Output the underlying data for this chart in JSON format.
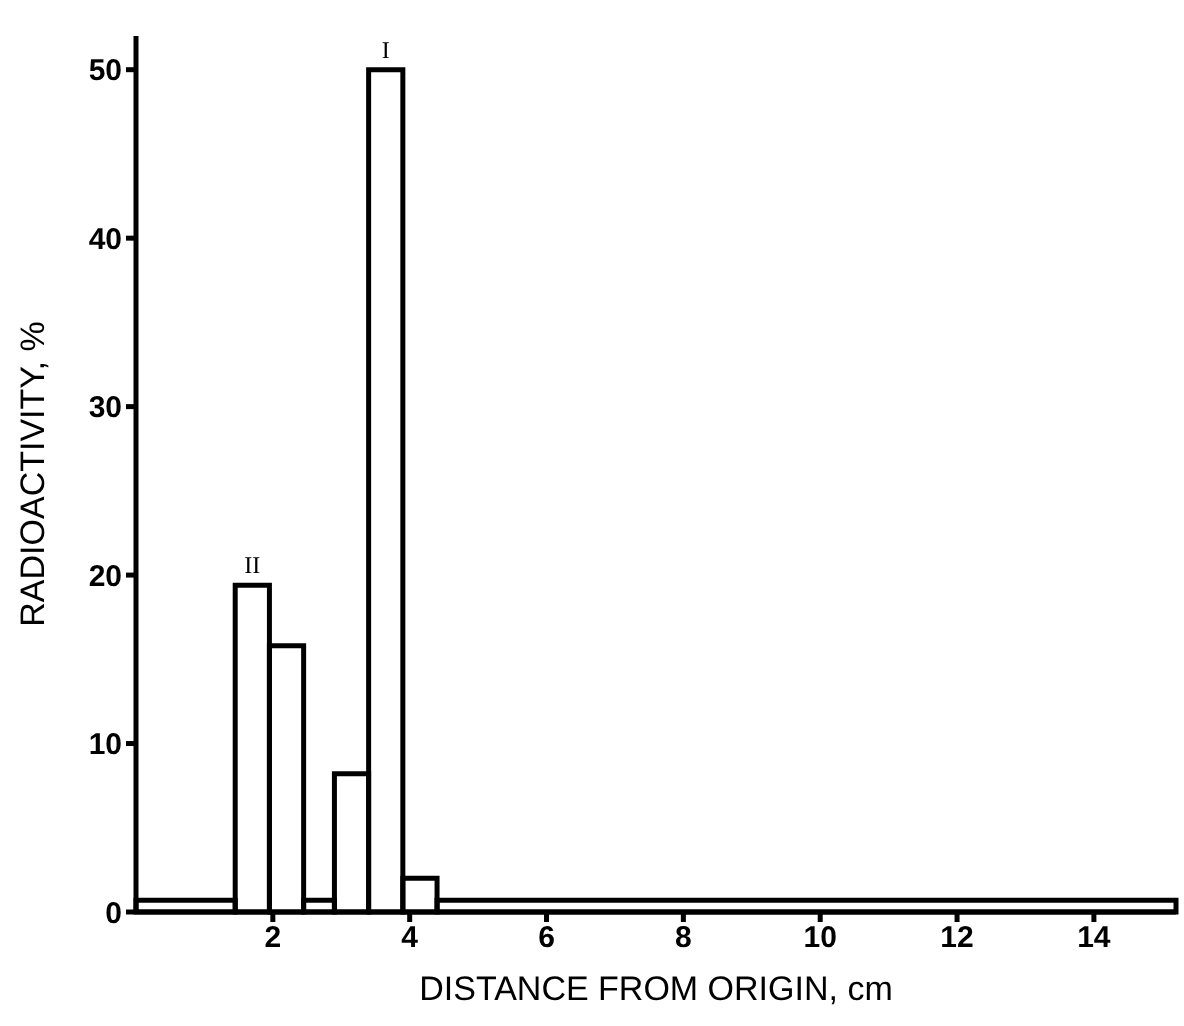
{
  "chart_data": {
    "type": "histogram",
    "xlabel": "DISTANCE FROM ORIGIN, cm",
    "ylabel": "RADIOACTIVITY, %",
    "bins": [
      0,
      1.45,
      1.95,
      2.45,
      2.9,
      3.4,
      3.9,
      4.4,
      15.2
    ],
    "values": [
      0.7,
      19.4,
      15.8,
      0.7,
      8.2,
      50,
      2,
      0.7
    ],
    "color": "#000000",
    "xlim": [
      0,
      15.2
    ],
    "xticks": [
      2,
      4,
      6,
      8,
      10,
      12,
      14
    ],
    "ylim": [
      0,
      52
    ],
    "yticks": [
      0,
      10,
      20,
      30,
      40,
      50
    ],
    "annotations": [
      {
        "text": "II",
        "x": 1.7,
        "y": 19.4
      },
      {
        "text": "I",
        "x": 3.65,
        "y": 50
      }
    ],
    "grid": false
  }
}
